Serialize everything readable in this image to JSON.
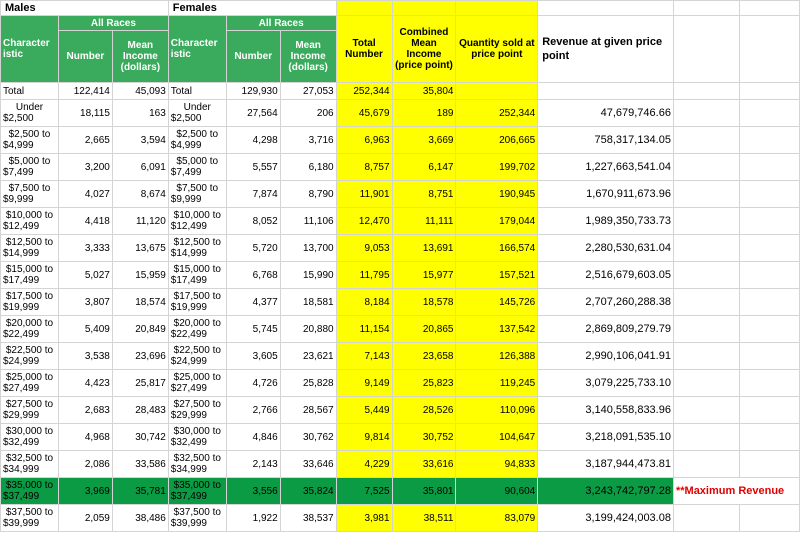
{
  "headers": {
    "group_males": "Males",
    "group_females": "Females",
    "all_races_m": "All Races",
    "all_races_f": "All Races",
    "characteristic_m": "Character istic",
    "number_m": "Number",
    "mean_income_m": "Mean Income (dollars)",
    "characteristic_f": "Character istic",
    "number_f": "Number",
    "mean_income_f": "Mean Income (dollars)",
    "total_number": "Total Number",
    "combined_mean": "Combined Mean Income (price point)",
    "qty_sold": "Quantity sold at price point",
    "revenue": "Revenue at given price point"
  },
  "rows": [
    {
      "m_char": [
        "Total",
        ""
      ],
      "m_num": "122,414",
      "m_mean": "45,093",
      "f_char": [
        "Total",
        ""
      ],
      "f_num": "129,930",
      "f_mean": "27,053",
      "total": "252,344",
      "combined": "35,804",
      "qty": "",
      "rev": ""
    },
    {
      "m_char": [
        "Under",
        "$2,500"
      ],
      "m_num": "18,115",
      "m_mean": "163",
      "f_char": [
        "Under",
        "$2,500"
      ],
      "f_num": "27,564",
      "f_mean": "206",
      "total": "45,679",
      "combined": "189",
      "qty": "252,344",
      "rev": "47,679,746.66"
    },
    {
      "m_char": [
        "$2,500 to",
        "$4,999"
      ],
      "m_num": "2,665",
      "m_mean": "3,594",
      "f_char": [
        "$2,500 to",
        "$4,999"
      ],
      "f_num": "4,298",
      "f_mean": "3,716",
      "total": "6,963",
      "combined": "3,669",
      "qty": "206,665",
      "rev": "758,317,134.05"
    },
    {
      "m_char": [
        "$5,000 to",
        "$7,499"
      ],
      "m_num": "3,200",
      "m_mean": "6,091",
      "f_char": [
        "$5,000 to",
        "$7,499"
      ],
      "f_num": "5,557",
      "f_mean": "6,180",
      "total": "8,757",
      "combined": "6,147",
      "qty": "199,702",
      "rev": "1,227,663,541.04"
    },
    {
      "m_char": [
        "$7,500 to",
        "$9,999"
      ],
      "m_num": "4,027",
      "m_mean": "8,674",
      "f_char": [
        "$7,500 to",
        "$9,999"
      ],
      "f_num": "7,874",
      "f_mean": "8,790",
      "total": "11,901",
      "combined": "8,751",
      "qty": "190,945",
      "rev": "1,670,911,673.96"
    },
    {
      "m_char": [
        "$10,000 to",
        "$12,499"
      ],
      "m_num": "4,418",
      "m_mean": "11,120",
      "f_char": [
        "$10,000 to",
        "$12,499"
      ],
      "f_num": "8,052",
      "f_mean": "11,106",
      "total": "12,470",
      "combined": "11,111",
      "qty": "179,044",
      "rev": "1,989,350,733.73"
    },
    {
      "m_char": [
        "$12,500 to",
        "$14,999"
      ],
      "m_num": "3,333",
      "m_mean": "13,675",
      "f_char": [
        "$12,500 to",
        "$14,999"
      ],
      "f_num": "5,720",
      "f_mean": "13,700",
      "total": "9,053",
      "combined": "13,691",
      "qty": "166,574",
      "rev": "2,280,530,631.04"
    },
    {
      "m_char": [
        "$15,000 to",
        "$17,499"
      ],
      "m_num": "5,027",
      "m_mean": "15,959",
      "f_char": [
        "$15,000 to",
        "$17,499"
      ],
      "f_num": "6,768",
      "f_mean": "15,990",
      "total": "11,795",
      "combined": "15,977",
      "qty": "157,521",
      "rev": "2,516,679,603.05"
    },
    {
      "m_char": [
        "$17,500 to",
        "$19,999"
      ],
      "m_num": "3,807",
      "m_mean": "18,574",
      "f_char": [
        "$17,500 to",
        "$19,999"
      ],
      "f_num": "4,377",
      "f_mean": "18,581",
      "total": "8,184",
      "combined": "18,578",
      "qty": "145,726",
      "rev": "2,707,260,288.38"
    },
    {
      "m_char": [
        "$20,000 to",
        "$22,499"
      ],
      "m_num": "5,409",
      "m_mean": "20,849",
      "f_char": [
        "$20,000 to",
        "$22,499"
      ],
      "f_num": "5,745",
      "f_mean": "20,880",
      "total": "11,154",
      "combined": "20,865",
      "qty": "137,542",
      "rev": "2,869,809,279.79"
    },
    {
      "m_char": [
        "$22,500 to",
        "$24,999"
      ],
      "m_num": "3,538",
      "m_mean": "23,696",
      "f_char": [
        "$22,500 to",
        "$24,999"
      ],
      "f_num": "3,605",
      "f_mean": "23,621",
      "total": "7,143",
      "combined": "23,658",
      "qty": "126,388",
      "rev": "2,990,106,041.91"
    },
    {
      "m_char": [
        "$25,000 to",
        "$27,499"
      ],
      "m_num": "4,423",
      "m_mean": "25,817",
      "f_char": [
        "$25,000 to",
        "$27,499"
      ],
      "f_num": "4,726",
      "f_mean": "25,828",
      "total": "9,149",
      "combined": "25,823",
      "qty": "119,245",
      "rev": "3,079,225,733.10"
    },
    {
      "m_char": [
        "$27,500 to",
        "$29,999"
      ],
      "m_num": "2,683",
      "m_mean": "28,483",
      "f_char": [
        "$27,500 to",
        "$29,999"
      ],
      "f_num": "2,766",
      "f_mean": "28,567",
      "total": "5,449",
      "combined": "28,526",
      "qty": "110,096",
      "rev": "3,140,558,833.96"
    },
    {
      "m_char": [
        "$30,000 to",
        "$32,499"
      ],
      "m_num": "4,968",
      "m_mean": "30,742",
      "f_char": [
        "$30,000 to",
        "$32,499"
      ],
      "f_num": "4,846",
      "f_mean": "30,762",
      "total": "9,814",
      "combined": "30,752",
      "qty": "104,647",
      "rev": "3,218,091,535.10"
    },
    {
      "m_char": [
        "$32,500 to",
        "$34,999"
      ],
      "m_num": "2,086",
      "m_mean": "33,586",
      "f_char": [
        "$32,500 to",
        "$34,999"
      ],
      "f_num": "2,143",
      "f_mean": "33,646",
      "total": "4,229",
      "combined": "33,616",
      "qty": "94,833",
      "rev": "3,187,944,473.81"
    },
    {
      "m_char": [
        "$35,000 to",
        "$37,499"
      ],
      "m_num": "3,969",
      "m_mean": "35,781",
      "f_char": [
        "$35,000 to",
        "$37,499"
      ],
      "f_num": "3,556",
      "f_mean": "35,824",
      "total": "7,525",
      "combined": "35,801",
      "qty": "90,604",
      "rev": "3,243,742,797.28",
      "note": "**Maximum Revenue"
    },
    {
      "m_char": [
        "$37,500 to",
        "$39,999"
      ],
      "m_num": "2,059",
      "m_mean": "38,486",
      "f_char": [
        "$37,500 to",
        "$39,999"
      ],
      "f_num": "1,922",
      "f_mean": "38,537",
      "total": "3,981",
      "combined": "38,511",
      "qty": "83,079",
      "rev": "3,199,424,003.08"
    }
  ]
}
